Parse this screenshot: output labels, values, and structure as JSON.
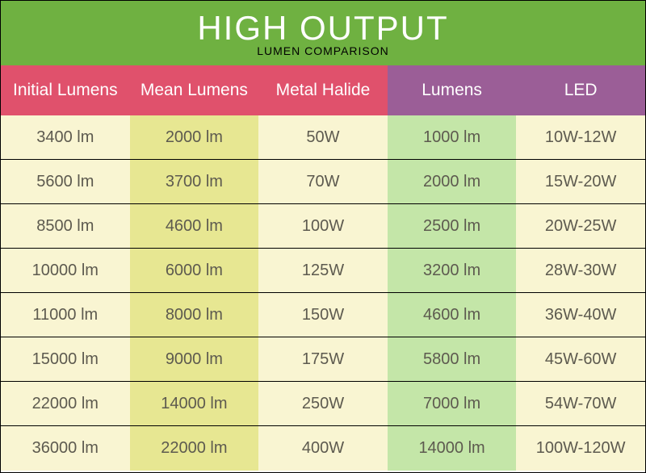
{
  "header": {
    "title": "HIGH OUTPUT",
    "subtitle": "LUMEN COMPARISON",
    "background_color": "#6fb141"
  },
  "table": {
    "columns": [
      {
        "label": "Initial Lumens",
        "header_bg": "#e0516c",
        "cell_bg": "#f9f5d2"
      },
      {
        "label": "Mean Lumens",
        "header_bg": "#e0516c",
        "cell_bg": "#e7e792"
      },
      {
        "label": "Metal Halide",
        "header_bg": "#e0516c",
        "cell_bg": "#f9f5d2"
      },
      {
        "label": "Lumens",
        "header_bg": "#9b5e97",
        "cell_bg": "#c4e6a8"
      },
      {
        "label": "LED",
        "header_bg": "#9b5e97",
        "cell_bg": "#f9f5d2"
      }
    ],
    "rows": [
      [
        "3400 lm",
        "2000 lm",
        "50W",
        "1000 lm",
        "10W-12W"
      ],
      [
        "5600 lm",
        "3700 lm",
        "70W",
        "2000 lm",
        "15W-20W"
      ],
      [
        "8500 lm",
        "4600 lm",
        "100W",
        "2500 lm",
        "20W-25W"
      ],
      [
        "10000 lm",
        "6000 lm",
        "125W",
        "3200 lm",
        "28W-30W"
      ],
      [
        "11000 lm",
        "8000 lm",
        "150W",
        "4600 lm",
        "36W-40W"
      ],
      [
        "15000 lm",
        "9000 lm",
        "175W",
        "5800 lm",
        "45W-60W"
      ],
      [
        "22000 lm",
        "14000 lm",
        "250W",
        "7000 lm",
        "54W-70W"
      ],
      [
        "36000 lm",
        "22000 lm",
        "400W",
        "14000 lm",
        "100W-120W"
      ]
    ]
  }
}
